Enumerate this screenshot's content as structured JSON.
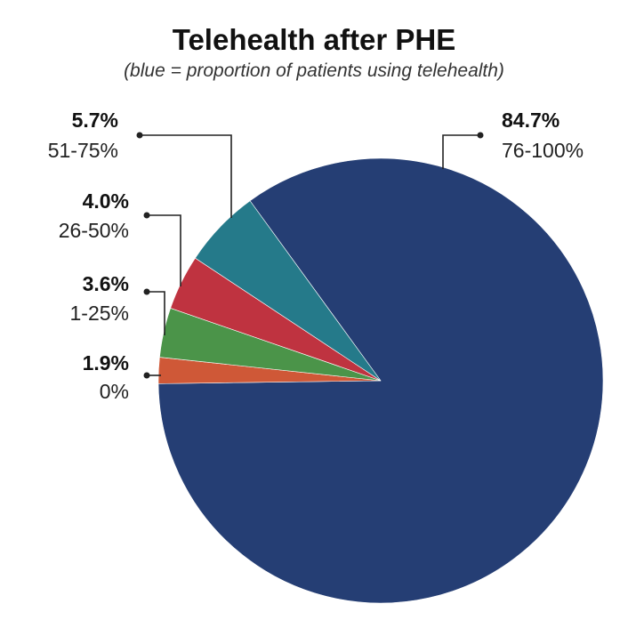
{
  "chart_data": {
    "type": "pie",
    "title": "Telehealth after PHE",
    "subtitle": "(blue = proportion of patients using telehealth)",
    "slices": [
      {
        "label": "76-100%",
        "value": 84.7,
        "value_label": "84.7%",
        "color": "#253e74"
      },
      {
        "label": "0%",
        "value": 1.9,
        "value_label": "1.9%",
        "color": "#cf5837"
      },
      {
        "label": "1-25%",
        "value": 3.6,
        "value_label": "3.6%",
        "color": "#4b9449"
      },
      {
        "label": "26-50%",
        "value": 4.0,
        "value_label": "4.0%",
        "color": "#bf3340"
      },
      {
        "label": "51-75%",
        "value": 5.7,
        "value_label": "5.7%",
        "color": "#257a8a"
      }
    ],
    "start_angle_deg": -36
  }
}
